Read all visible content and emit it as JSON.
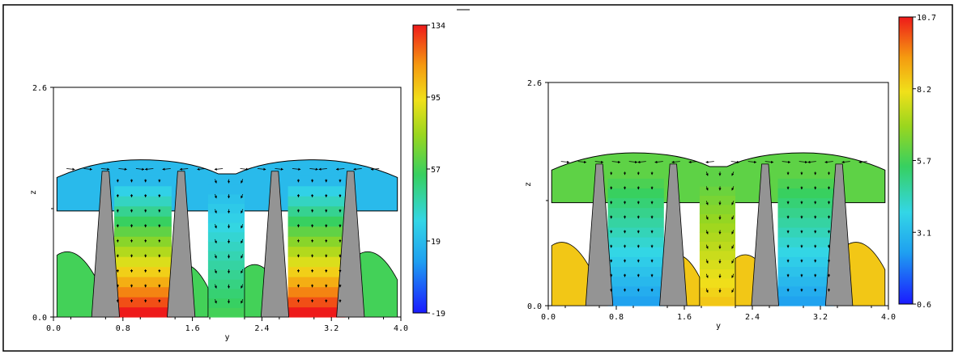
{
  "chart_data": [
    {
      "type": "heatmap",
      "title": "",
      "xlabel": "y",
      "ylabel": "z",
      "xlim": [
        0.0,
        4.0
      ],
      "ylim": [
        0.0,
        2.6
      ],
      "x_ticks": [
        "0.0",
        "0.8",
        "1.6",
        "2.4",
        "3.2",
        "4.0"
      ],
      "y_ticks": [
        "0.0",
        "2.6"
      ],
      "colorbar": {
        "min": -19,
        "max": 134,
        "ticks": [
          "134",
          "95",
          "57",
          "19",
          "-19"
        ]
      },
      "grid": false,
      "legend": "colorbar-right",
      "fill_hint": {
        "top": 19,
        "bottom_core": 134,
        "side_low": 57
      }
    },
    {
      "type": "heatmap",
      "title": "",
      "xlabel": "y",
      "ylabel": "z",
      "xlim": [
        0.0,
        4.0
      ],
      "ylim": [
        0.0,
        2.6
      ],
      "x_ticks": [
        "0.0",
        "0.8",
        "1.6",
        "2.4",
        "3.2",
        "4.0"
      ],
      "y_ticks": [
        "0.0",
        "2.6"
      ],
      "colorbar": {
        "min": 0.6,
        "max": 10.7,
        "ticks": [
          "10.7",
          "8.2",
          "5.7",
          "3.1",
          "0.6"
        ]
      },
      "grid": false,
      "legend": "colorbar-right",
      "fill_hint": {
        "top": 6.0,
        "bottom_core": 2.5,
        "side_low": 8.5
      }
    }
  ]
}
